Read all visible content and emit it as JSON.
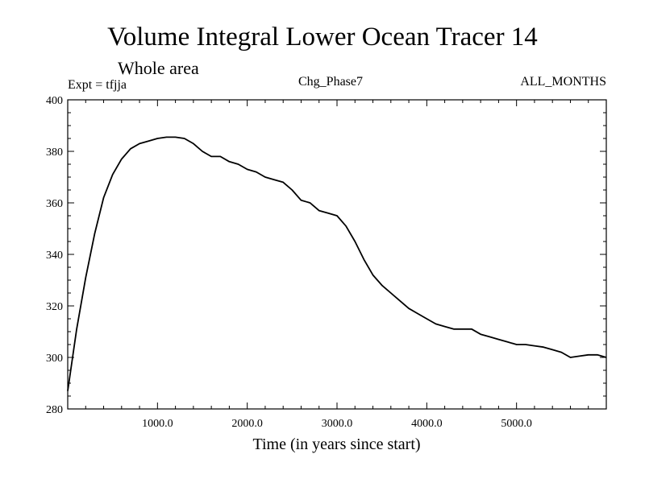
{
  "chart_data": {
    "type": "line",
    "title": "Volume Integral Lower Ocean Tracer 14",
    "subtitle": "Whole area",
    "annotations": {
      "experiment": "Expt = tfjja",
      "center": "Chg_Phase7",
      "right": "ALL_MONTHS"
    },
    "xlabel": "Time (in years since start)",
    "ylabel": "",
    "xlim": [
      0,
      6000
    ],
    "ylim": [
      280,
      400
    ],
    "xticks": [
      1000,
      2000,
      3000,
      4000,
      5000
    ],
    "xtick_labels": [
      "1000.0",
      "2000.0",
      "3000.0",
      "4000.0",
      "5000.0"
    ],
    "yticks": [
      280,
      300,
      320,
      340,
      360,
      380,
      400
    ],
    "ytick_labels": [
      "280",
      "300",
      "320",
      "340",
      "360",
      "380",
      "400"
    ],
    "grid": false,
    "line_color": "#000000",
    "series": [
      {
        "x": [
          0,
          100,
          200,
          300,
          400,
          500,
          600,
          700,
          800,
          900,
          1000,
          1100,
          1200,
          1300,
          1400,
          1500,
          1600,
          1700,
          1800,
          1900,
          2000,
          2100,
          2200,
          2300,
          2400,
          2500,
          2600,
          2700,
          2800,
          2900,
          3000,
          3100,
          3200,
          3300,
          3400,
          3500,
          3600,
          3700,
          3800,
          3900,
          4000,
          4100,
          4200,
          4300,
          4400,
          4500,
          4600,
          4700,
          4800,
          4900,
          5000,
          5100,
          5200,
          5300,
          5400,
          5500,
          5600,
          5700,
          5800,
          5900,
          6000
        ],
        "values": [
          287,
          311,
          331,
          348,
          362,
          371,
          377,
          381,
          383,
          384,
          385,
          385.5,
          385.5,
          385,
          383,
          380,
          378,
          378,
          376,
          375,
          373,
          372,
          370,
          369,
          368,
          365,
          361,
          360,
          357,
          356,
          355,
          351,
          345,
          338,
          332,
          328,
          325,
          322,
          319,
          317,
          315,
          313,
          312,
          311,
          311,
          311,
          309,
          308,
          307,
          306,
          305,
          305,
          304.5,
          304,
          303,
          302,
          300,
          300.5,
          301,
          301,
          300
        ]
      }
    ]
  }
}
